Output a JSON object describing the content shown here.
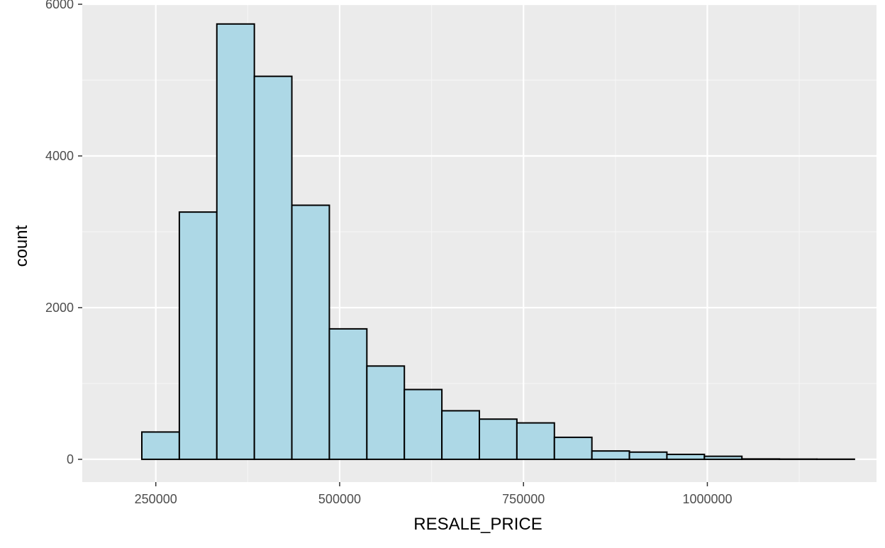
{
  "chart_data": {
    "type": "bar",
    "xlabel": "RESALE_PRICE",
    "ylabel": "count",
    "xlim": [
      150000,
      1230000
    ],
    "ylim": [
      -300,
      6000
    ],
    "x_ticks": [
      250000,
      500000,
      750000,
      1000000
    ],
    "x_tick_labels": [
      "250000",
      "500000",
      "750000",
      "1000000"
    ],
    "y_ticks": [
      0,
      2000,
      4000,
      6000
    ],
    "y_tick_labels": [
      "0",
      "2000",
      "4000",
      "6000"
    ],
    "grid": true,
    "bin_width": 51000,
    "bins": [
      {
        "x0": 180000,
        "x1": 231000,
        "count": 0
      },
      {
        "x0": 231000,
        "x1": 282000,
        "count": 360
      },
      {
        "x0": 282000,
        "x1": 333000,
        "count": 3260
      },
      {
        "x0": 333000,
        "x1": 384000,
        "count": 5740
      },
      {
        "x0": 384000,
        "x1": 435000,
        "count": 5050
      },
      {
        "x0": 435000,
        "x1": 486000,
        "count": 3350
      },
      {
        "x0": 486000,
        "x1": 537000,
        "count": 1720
      },
      {
        "x0": 537000,
        "x1": 588000,
        "count": 1230
      },
      {
        "x0": 588000,
        "x1": 639000,
        "count": 920
      },
      {
        "x0": 639000,
        "x1": 690000,
        "count": 640
      },
      {
        "x0": 690000,
        "x1": 741000,
        "count": 530
      },
      {
        "x0": 741000,
        "x1": 792000,
        "count": 480
      },
      {
        "x0": 792000,
        "x1": 843000,
        "count": 290
      },
      {
        "x0": 843000,
        "x1": 894000,
        "count": 110
      },
      {
        "x0": 894000,
        "x1": 945000,
        "count": 95
      },
      {
        "x0": 945000,
        "x1": 996000,
        "count": 65
      },
      {
        "x0": 996000,
        "x1": 1047000,
        "count": 40
      },
      {
        "x0": 1047000,
        "x1": 1098000,
        "count": 5
      },
      {
        "x0": 1098000,
        "x1": 1149000,
        "count": 3
      },
      {
        "x0": 1149000,
        "x1": 1200000,
        "count": 2
      }
    ],
    "colors": {
      "fill": "#add8e6",
      "stroke": "#000000",
      "panel": "#ebebeb",
      "grid_major": "#ffffff",
      "grid_minor": "#f5f5f5"
    }
  }
}
